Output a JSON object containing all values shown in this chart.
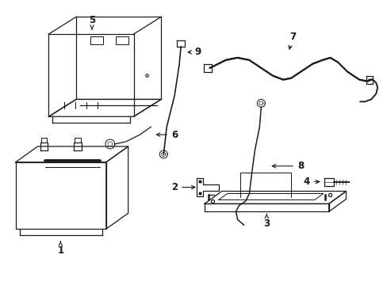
{
  "background_color": "#ffffff",
  "line_color": "#1a1a1a",
  "label_fontsize": 8.5,
  "lw": 0.9
}
